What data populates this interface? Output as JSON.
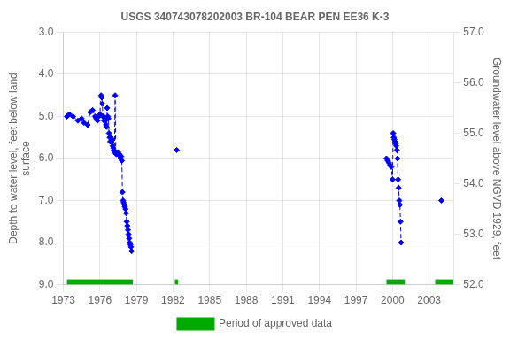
{
  "chart_data": {
    "type": "line",
    "title": "USGS 340743078202003 BR-104 BEAR PEN EE36 K-3",
    "ylabel": "Depth to water level, feet below land\nsurface",
    "y2label": "Groundwater level above NGVD 1929, feet",
    "xlim": [
      1973,
      2005
    ],
    "xticks": [
      1973,
      1976,
      1979,
      1982,
      1985,
      1988,
      1991,
      1994,
      1997,
      2000,
      2003
    ],
    "ylim": [
      9.0,
      3.0
    ],
    "yticks": [
      {
        "value": 3.0,
        "label": "3.0"
      },
      {
        "value": 4.0,
        "label": "4.0"
      },
      {
        "value": 5.0,
        "label": "5.0"
      },
      {
        "value": 6.0,
        "label": "6.0"
      },
      {
        "value": 7.0,
        "label": "7.0"
      },
      {
        "value": 8.0,
        "label": "8.0"
      },
      {
        "value": 9.0,
        "label": "9.0"
      }
    ],
    "y2lim": [
      52.0,
      57.0
    ],
    "y2ticks": [
      {
        "value": 57.0,
        "label": "57.0"
      },
      {
        "value": 56.0,
        "label": "56.0"
      },
      {
        "value": 55.0,
        "label": "55.0"
      },
      {
        "value": 54.0,
        "label": "54.0"
      },
      {
        "value": 53.0,
        "label": "53.0"
      },
      {
        "value": 52.0,
        "label": "52.0"
      }
    ],
    "grid": true,
    "legend": "bottom",
    "series": [
      {
        "color": "#0000ff",
        "marker": "diamond",
        "line_style": "dashed",
        "axis": "y",
        "x": [
          1973.3,
          1973.5,
          1973.8,
          1974.2,
          1974.5,
          1974.7,
          1975.0,
          1975.2,
          1975.4,
          1975.6,
          1975.7,
          1975.8,
          1975.9,
          1976.0,
          1976.1,
          1976.15,
          1976.2,
          1976.25,
          1976.3,
          1976.35,
          1976.4,
          1976.45,
          1976.5,
          1976.55,
          1976.6,
          1976.65,
          1976.7,
          1976.75,
          1976.8,
          1976.85,
          1976.9,
          1976.95,
          1977.0,
          1977.05,
          1977.1,
          1977.15,
          1977.2,
          1977.25,
          1977.3,
          1977.35,
          1977.5,
          1977.6,
          1977.65,
          1977.7,
          1977.75,
          1977.8,
          1977.85,
          1977.9,
          1977.95,
          1978.0,
          1978.05,
          1978.1,
          1978.15,
          1978.2,
          1978.25,
          1978.3,
          1978.35,
          1978.4,
          1978.45,
          1978.5,
          1978.55,
          1978.6
        ],
        "values": [
          5.0,
          4.95,
          5.0,
          5.1,
          5.05,
          5.15,
          5.2,
          4.9,
          4.85,
          5.0,
          5.05,
          5.1,
          5.0,
          4.95,
          4.5,
          4.55,
          4.7,
          5.0,
          5.0,
          5.1,
          5.05,
          5.1,
          5.2,
          5.25,
          4.8,
          5.0,
          5.05,
          5.4,
          5.5,
          5.6,
          5.5,
          5.6,
          5.55,
          5.7,
          5.75,
          5.8,
          5.85,
          4.5,
          5.85,
          5.9,
          5.85,
          5.9,
          5.95,
          6.0,
          5.95,
          6.05,
          6.8,
          7.0,
          7.05,
          7.1,
          7.15,
          7.2,
          7.3,
          7.5,
          7.6,
          7.7,
          7.8,
          7.9,
          8.0,
          8.05,
          8.1,
          8.2
        ]
      },
      {
        "color": "#0000ff",
        "marker": "diamond",
        "line_style": "dashed",
        "axis": "y",
        "x": [
          1982.3
        ],
        "values": [
          5.8
        ]
      },
      {
        "color": "#0000ff",
        "marker": "diamond",
        "line_style": "dashed",
        "axis": "y",
        "x": [
          1999.5,
          1999.6,
          1999.7,
          1999.8,
          1999.9,
          2000.0,
          2000.05,
          2000.1,
          2000.15,
          2000.2,
          2000.25,
          2000.3,
          2000.35,
          2000.4,
          2000.45,
          2000.5,
          2000.55,
          2000.6,
          2000.65,
          2000.7
        ],
        "values": [
          6.0,
          6.05,
          6.1,
          6.15,
          6.2,
          6.5,
          5.4,
          5.5,
          5.55,
          5.6,
          5.65,
          5.7,
          5.8,
          6.0,
          6.5,
          6.7,
          7.0,
          7.1,
          7.5,
          8.0
        ]
      },
      {
        "color": "#0000ff",
        "marker": "diamond",
        "line_style": "dashed",
        "axis": "y",
        "x": [
          2004.0
        ],
        "values": [
          7.0
        ]
      },
      {
        "name": "Period of approved data",
        "type": "bar",
        "color": "#00aa00",
        "ranges": [
          [
            1973.3,
            1978.7
          ],
          [
            1982.15,
            1982.4
          ],
          [
            1999.5,
            2001.0
          ],
          [
            2003.5,
            2005.0
          ]
        ]
      }
    ]
  }
}
